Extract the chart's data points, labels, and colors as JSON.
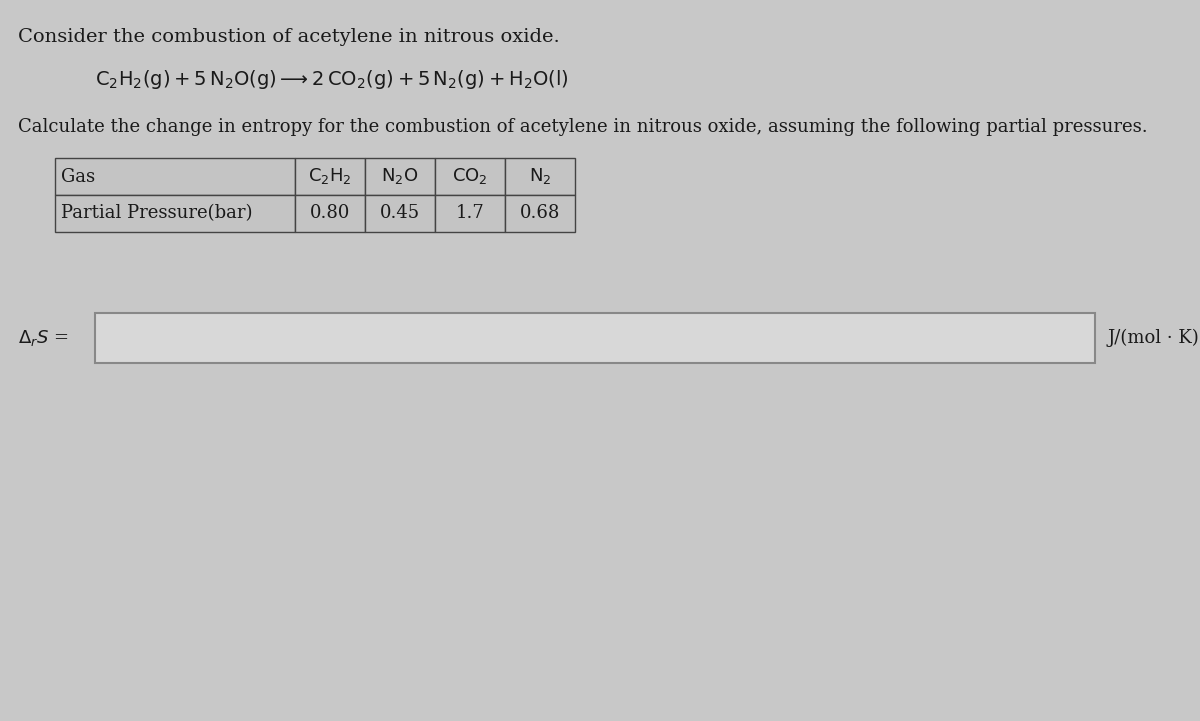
{
  "background_color": "#c8c8c8",
  "title_text": "Consider the combustion of acetylene in nitrous oxide.",
  "calc_text": "Calculate the change in entropy for the combustion of acetylene in nitrous oxide, assuming the following partial pressures.",
  "table_headers_math": [
    "Gas",
    "$\\mathrm{C_2H_2}$",
    "$\\mathrm{N_2O}$",
    "$\\mathrm{CO_2}$",
    "$\\mathrm{N_2}$"
  ],
  "table_row": [
    "Partial Pressure(bar)",
    "0.80",
    "0.45",
    "1.7",
    "0.68"
  ],
  "answer_label": "$\\Delta_r S$ =",
  "units_label": "J/(mol · K)",
  "font_size_title": 14,
  "font_size_calc": 13,
  "font_size_eq": 14,
  "font_size_table": 13,
  "font_size_answer": 13,
  "text_color": "#1a1a1a",
  "table_bg": "#c4c4c4",
  "table_border": "#444444",
  "input_box_facecolor": "#d8d8d8",
  "input_box_edgecolor": "#888888",
  "eq_text": "$\\mathrm{C_2H_2(g) + 5\\,N_2O(g) \\longrightarrow 2\\,CO_2(g) + 5\\,N_2(g) + H_2O(l)}$"
}
